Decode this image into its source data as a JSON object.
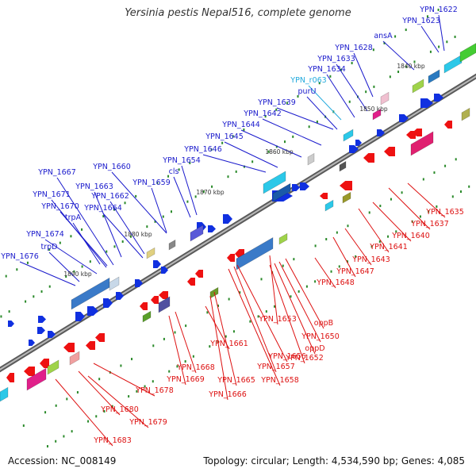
{
  "title": "Yersinia pestis Nepal516, complete genome",
  "footer": {
    "accession": "Accession: NC_008149",
    "summary": "Topology: circular; Length: 4,534,590 bp; Genes: 4,085"
  },
  "colors": {
    "forward_label": "#1a1acc",
    "reverse_label": "#dd1111",
    "rna_label": "#22aadd",
    "backbone": "#8a8a8a",
    "gc_dot": "#2a8a2a"
  },
  "ticks": [
    "1840 kbp",
    "1850 kbp",
    "1860 kbp",
    "1870 kbp",
    "1880 kbp",
    "1890 kbp"
  ],
  "forward_labels": [
    "YPN_1622",
    "YPN_1623",
    "ansA",
    "YPN_1628",
    "YPN_1633",
    "YPN_1634",
    "YPN_r063",
    "purU",
    "YPN_1639",
    "YPN_1642",
    "YPN_1644",
    "YPN_1645",
    "YPN_1646",
    "YPN_1654",
    "cls",
    "YPN_1660",
    "YPN_1659",
    "YPN_1667",
    "YPN_1663",
    "YPN_1662",
    "YPN_1671",
    "YPN_1670",
    "YPN_1664",
    "trpA",
    "YPN_1674",
    "trpD",
    "YPN_1676"
  ],
  "reverse_labels": [
    "YPN_1635",
    "YPN_1637",
    "YPN_1640",
    "YPN_1641",
    "YPN_1643",
    "YPN_1647",
    "YPN_1648",
    "YPN_1653",
    "oppB",
    "YPN_1650",
    "oppD",
    "YPN_1652",
    "YPN_1656",
    "YPN_1657",
    "YPN_1658",
    "YPN_1661",
    "YPN_1665",
    "YPN_1666",
    "YPN_1668",
    "YPN_1669",
    "YPN_1678",
    "YPN_1680",
    "YPN_1679",
    "YPN_1683"
  ]
}
